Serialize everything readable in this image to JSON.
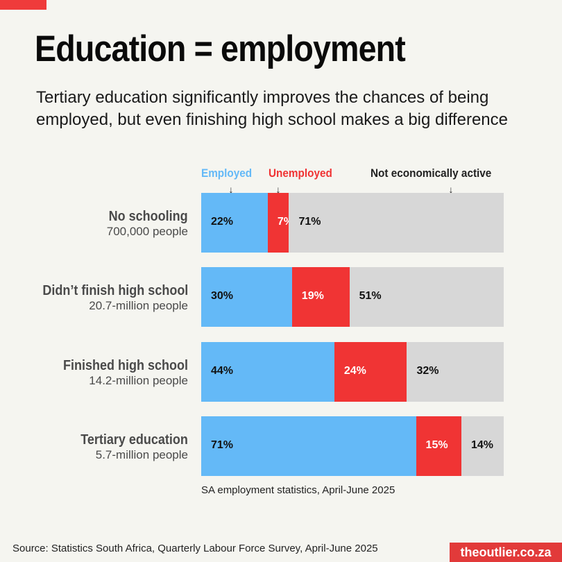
{
  "header": {
    "title": "Education = employment",
    "subtitle": "Tertiary education significantly improves the chances of being employed, but even finishing high school makes a big difference"
  },
  "legend": {
    "employed": "Employed",
    "unemployed": "Unemployed",
    "inactive": "Not economically active",
    "arrow": "↓"
  },
  "colors": {
    "employed": "#64b9f7",
    "unemployed": "#f03434",
    "inactive": "#d7d7d7"
  },
  "chart_data": {
    "type": "bar",
    "stacked": true,
    "orientation": "horizontal",
    "unit": "%",
    "categories": [
      "No schooling",
      "Didn’t finish high school",
      "Finished high school",
      "Tertiary education"
    ],
    "category_subtitles": [
      "700,000 people",
      "20.7-million people",
      "14.2-million people",
      "5.7-million people"
    ],
    "series": [
      {
        "name": "Employed",
        "values": [
          22,
          30,
          44,
          71
        ]
      },
      {
        "name": "Unemployed",
        "values": [
          7,
          19,
          24,
          15
        ]
      },
      {
        "name": "Not economically active",
        "values": [
          71,
          51,
          32,
          14
        ]
      }
    ],
    "xlim": [
      0,
      100
    ],
    "legend_position": "top"
  },
  "note": "SA employment statistics, April-June 2025",
  "footer": {
    "source": "Source: Statistics South Africa, Quarterly Labour Force Survey, April-June 2025",
    "brand": "theoutlier.co.za"
  }
}
